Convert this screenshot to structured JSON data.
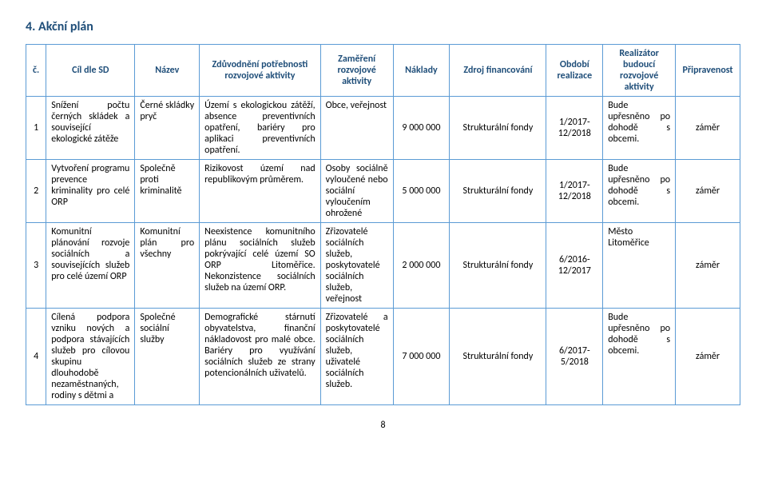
{
  "heading": "4. Akční plán",
  "page_number": "8",
  "colors": {
    "heading": "#1f4e79",
    "border": "#5b9bd5",
    "text": "#000000",
    "bg": "#ffffff"
  },
  "headers": {
    "c": "č.",
    "cil": "Cíl dle SD",
    "nazev": "Název",
    "zduv": "Zdůvodnění potřebnosti rozvojové aktivity",
    "zam": "Zaměření rozvojové aktivity",
    "nakl": "Náklady",
    "zdroj": "Zdroj financování",
    "obd": "Období realizace",
    "real": "Realizátor budoucí rozvojové aktivity",
    "prip": "Připravenost"
  },
  "rows": [
    {
      "c": "1",
      "cil": "Snížení počtu černých skládek a související ekologické zátěže",
      "nazev": "Černé skládky pryč",
      "zduv": "Území s ekologickou zátěží, absence preventivních opatření, bariéry pro aplikaci preventivních opatření.",
      "zam": "Obce, veřejnost",
      "nakl": "9 000 000",
      "zdroj": "Strukturální fondy",
      "obd": "1/2017-12/2018",
      "real": "Bude upřesněno po dohodě s obcemi.",
      "prip": "záměr"
    },
    {
      "c": "2",
      "cil": "Vytvoření programu prevence kriminality pro celé ORP",
      "nazev": "Společně proti kriminalitě",
      "zduv": "Rizikovost území nad republikovým průměrem.",
      "zam": "Osoby sociálně vyloučené nebo sociální vyloučením ohrožené",
      "nakl": "5 000 000",
      "zdroj": "Strukturální fondy",
      "obd": "1/2017-12/2018",
      "real": "Bude upřesněno po dohodě s obcemi.",
      "prip": "záměr"
    },
    {
      "c": "3",
      "cil": "Komunitní plánování rozvoje sociálních a souvisejících služeb pro celé území ORP",
      "nazev": "Komunitní plán pro všechny",
      "zduv": "Neexistence komunitního plánu sociálních služeb pokrývající celé území SO ORP Litoměřice. Nekonzistence sociálních služeb na území ORP.",
      "zam": "Zřizovatelé sociálních služeb, poskytovatelé sociálních služeb, veřejnost",
      "nakl": "2 000 000",
      "zdroj": "Strukturální fondy",
      "obd": "6/2016-12/2017",
      "real": "Město Litoměřice",
      "prip": "záměr"
    },
    {
      "c": "4",
      "cil": "Cílená podpora vzniku nových a podpora stávajících služeb pro cílovou skupinu dlouhodobě nezaměstnaných, rodiny s dětmi a",
      "nazev": "Společné sociální služby",
      "zduv": "Demografické stárnutí obyvatelstva, finanční nákladovost pro malé obce. Bariéry pro využívání sociálních služeb ze strany potencionálních uživatelů.",
      "zam": "Zřizovatelé a poskytovatelé sociálních služeb, uživatelé sociálních služeb.",
      "nakl": "7 000 000",
      "zdroj": "Strukturální fondy",
      "obd": "6/2017-5/2018",
      "real": "Bude upřesněno po dohodě s obcemi.",
      "prip": "záměr"
    }
  ]
}
